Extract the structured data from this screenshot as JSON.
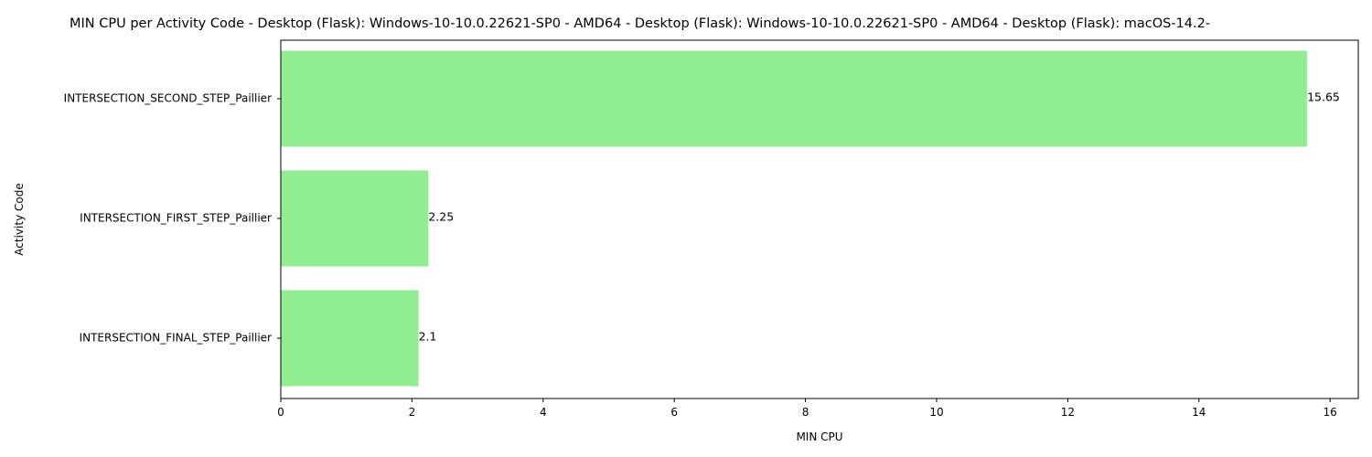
{
  "chart_data": {
    "type": "bar",
    "orientation": "horizontal",
    "title": "MIN CPU per Activity Code - Desktop (Flask): Windows-10-10.0.22621-SP0 - AMD64 - Desktop (Flask): Windows-10-10.0.22621-SP0 - AMD64 - Desktop (Flask): macOS-14.2-",
    "xlabel": "MIN CPU",
    "ylabel": "Activity Code",
    "categories": [
      "INTERSECTION_SECOND_STEP_Paillier",
      "INTERSECTION_FIRST_STEP_Paillier",
      "INTERSECTION_FINAL_STEP_Paillier"
    ],
    "values": [
      15.65,
      2.25,
      2.1
    ],
    "data_labels": [
      "15.65",
      "2.25",
      "2.1"
    ],
    "xlim": [
      0,
      16.43
    ],
    "xticks": [
      0,
      2,
      4,
      6,
      8,
      10,
      12,
      14,
      16
    ],
    "bar_color": "#90ee90",
    "grid": false,
    "legend": "none"
  }
}
